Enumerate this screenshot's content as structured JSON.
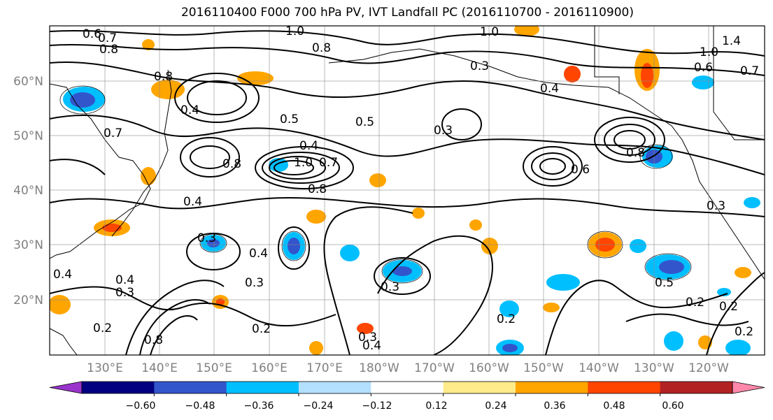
{
  "title": "2016110400 F000 700 hPa PV, IVT Landfall PC (2016110700 - 2016110900)",
  "lat_labels": [
    "60°N",
    "50°N",
    "40°N",
    "30°N",
    "20°N"
  ],
  "lon_labels": [
    "130°E",
    "140°E",
    "150°E",
    "160°E",
    "170°E",
    "180°W",
    "170°W",
    "160°W",
    "150°W",
    "140°W",
    "130°W",
    "120°W"
  ],
  "colorbar": {
    "colors": [
      "#9933cc",
      "#000080",
      "#3355cc",
      "#00bfff",
      "#b3e0ff",
      "#ffffff",
      "#ffeb8a",
      "#ffa500",
      "#ff4500",
      "#b22222",
      "#ff88aa"
    ],
    "ticks": [
      "−0.60",
      "−0.48",
      "−0.36",
      "−0.24",
      "−0.12",
      "0.12",
      "0.24",
      "0.36",
      "0.48",
      "0.60"
    ]
  },
  "contour_labels": [
    "0.6",
    "0.7",
    "0.8",
    "1.0",
    "0.8",
    "1.0",
    "1.4",
    "1.0",
    "0.6",
    "0.7",
    "0.8",
    "0.3",
    "0.4",
    "0.4",
    "0.5",
    "0.5",
    "0.3",
    "0.7",
    "0.4",
    "1.0",
    "0.7",
    "0.8",
    "0.6",
    "0.8",
    "0.8",
    "0.3",
    "0.4",
    "0.3",
    "0.4",
    "0.3",
    "0.2",
    "0.2",
    "0.3",
    "0.4",
    "0.2",
    "0.3",
    "0.2",
    "0.4",
    "0.5",
    "0.2",
    "0.2",
    "0.4",
    "0.8",
    "0.3"
  ],
  "shaded_regions": [
    {
      "label": "-0.36",
      "color": "#3355cc"
    },
    {
      "label": "-0.24",
      "color": "#00bfff"
    },
    {
      "label": "0.24",
      "color": "#ffa500"
    },
    {
      "label": "0.36",
      "color": "#ff4500"
    }
  ]
}
